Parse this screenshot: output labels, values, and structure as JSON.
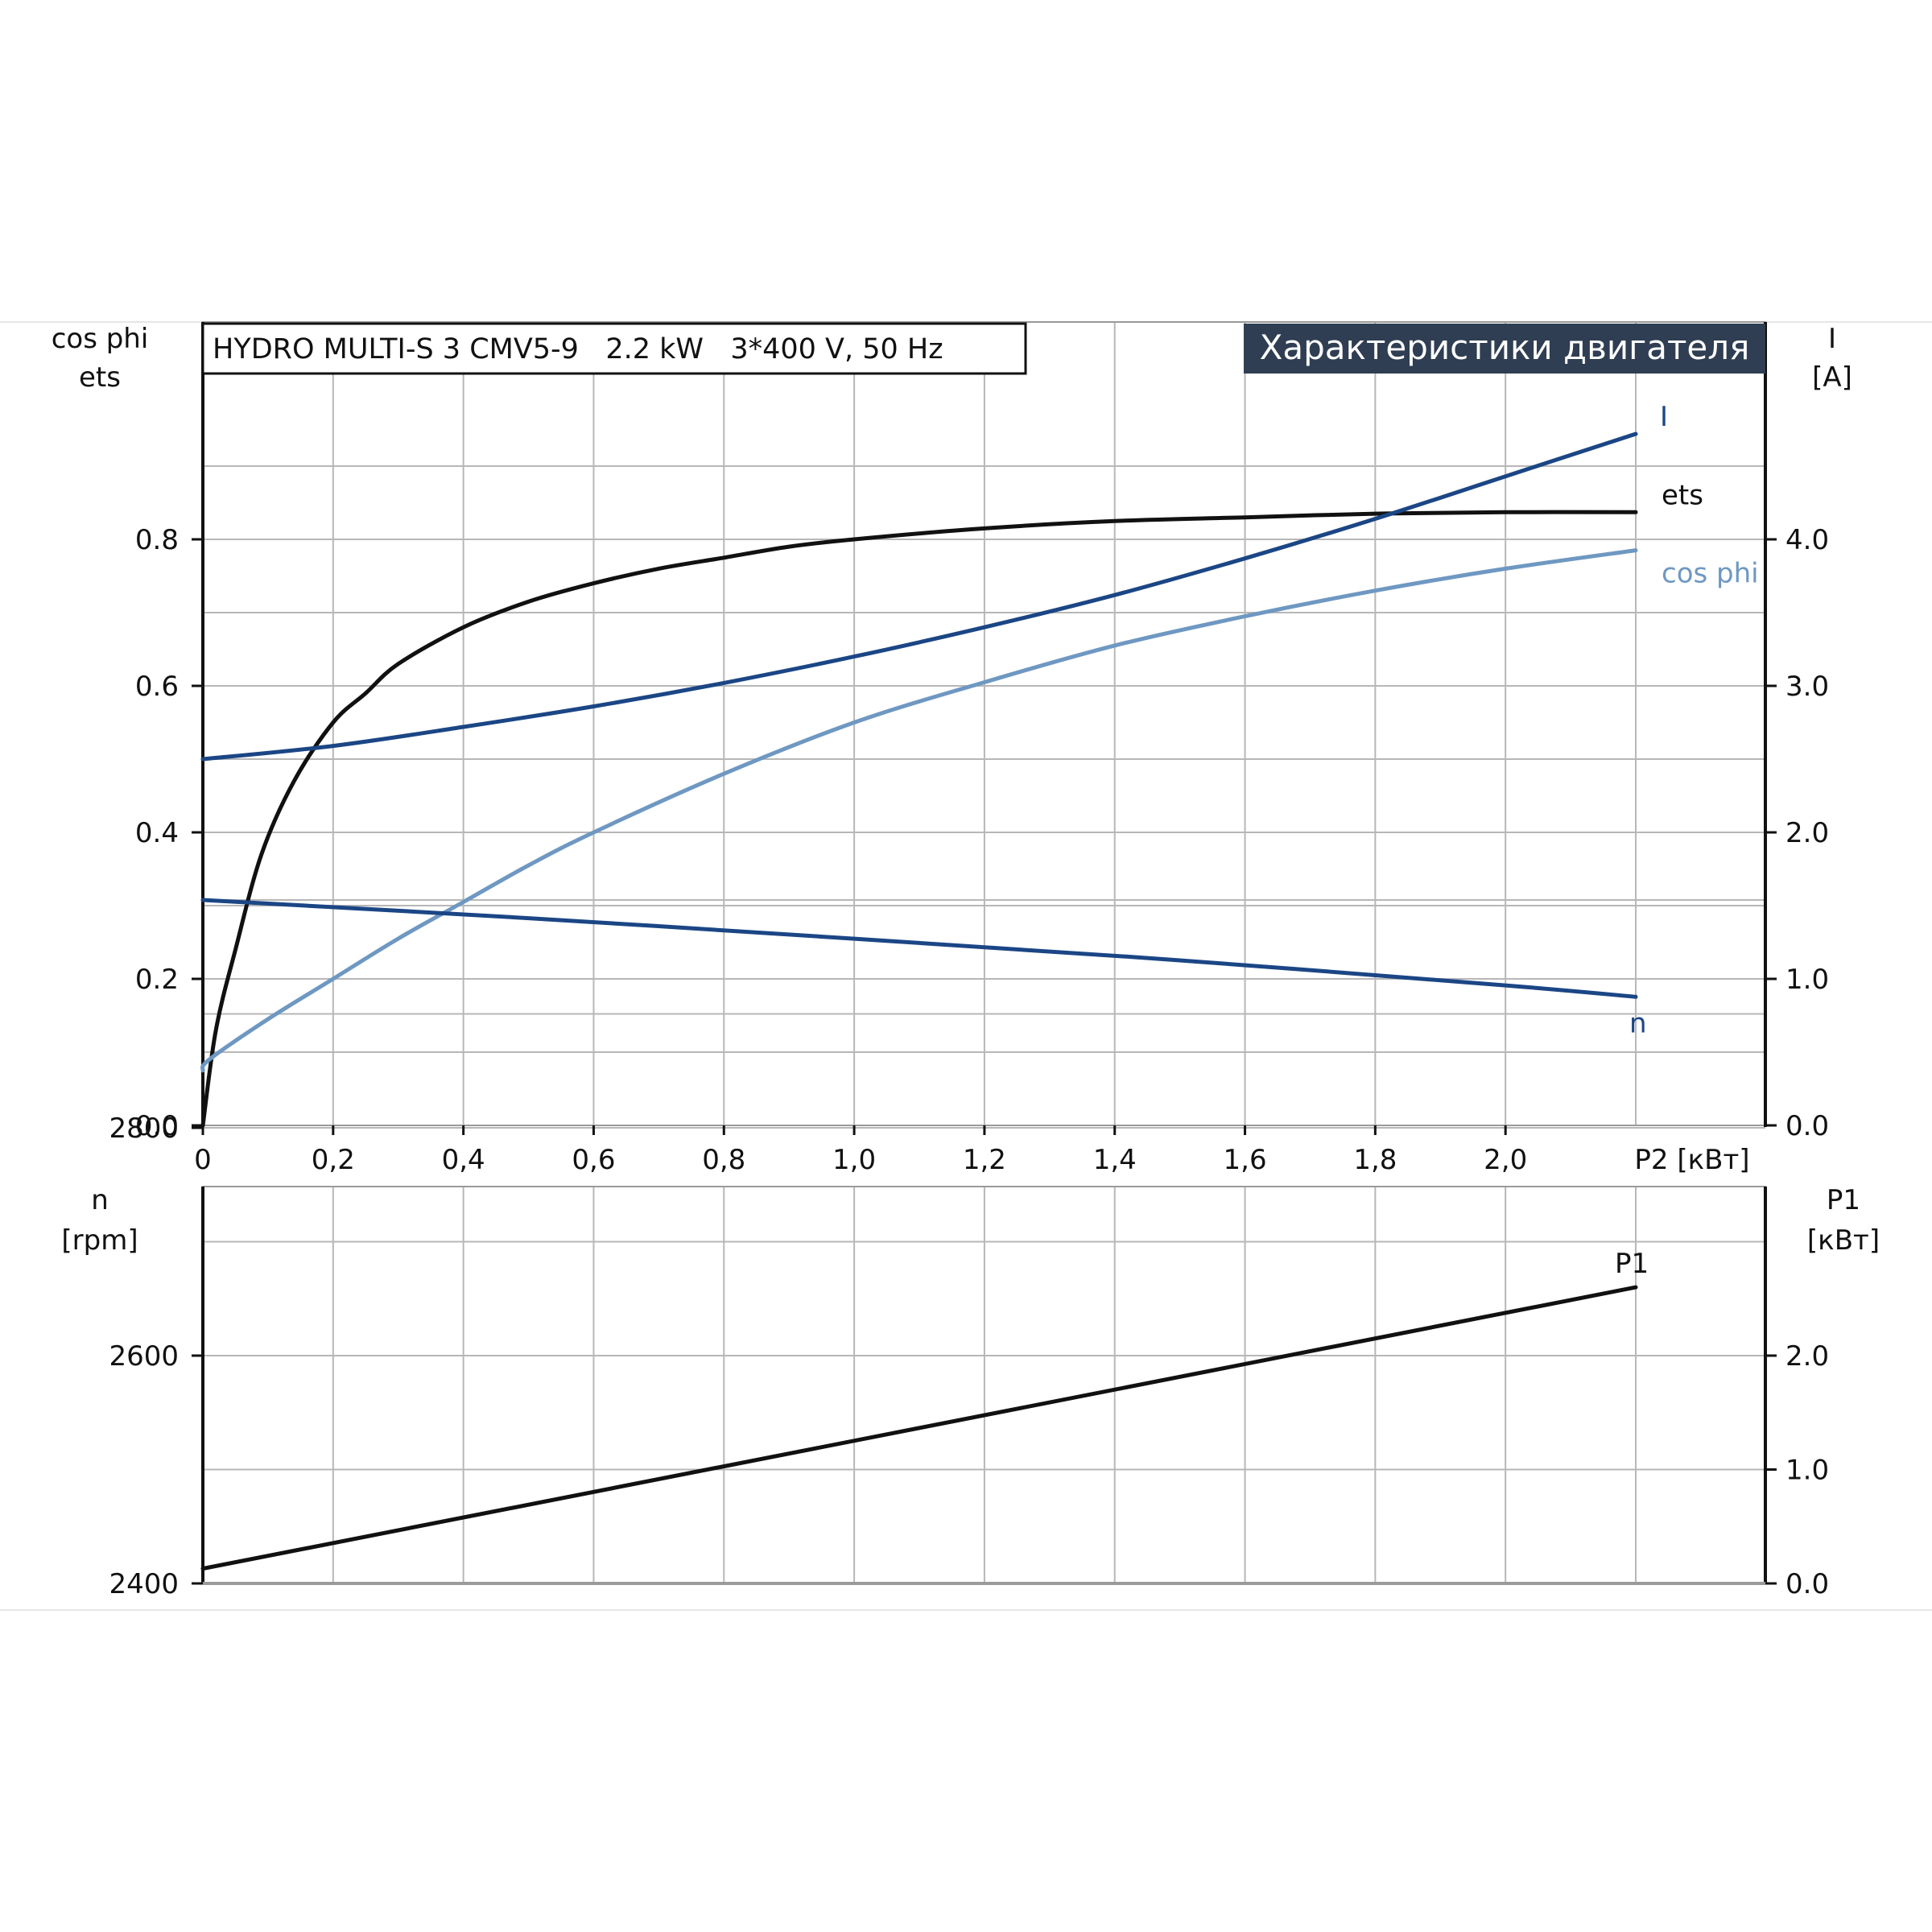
{
  "colors": {
    "dark": "#111111",
    "navy": "#1b4685",
    "light_blue": "#6e98c2",
    "grid": "#b7b7b7",
    "banner_bg": "#2f3e52",
    "banner_fg": "#ffffff"
  },
  "header": {
    "product_label": "HYDRO MULTI-S 3 CMV5-9   2.2 kW   3*400 V, 50 Hz",
    "banner": "Характеристики двигателя"
  },
  "top_axes": {
    "left_label_1": "cos phi",
    "left_label_2": "ets",
    "right_label_1": "I",
    "right_label_2": "[A]"
  },
  "bottom_axes": {
    "left_label_1": "n",
    "left_label_2": "[rpm]",
    "right_label_1": "P1",
    "right_label_2": "[кВт]"
  },
  "x_axis": {
    "label": "P2 [кВт]",
    "ticks": [
      "0",
      "0,2",
      "0,4",
      "0,6",
      "0,8",
      "1,0",
      "1,2",
      "1,4",
      "1,6",
      "1,8",
      "2,0"
    ]
  },
  "chart_data": [
    {
      "type": "line",
      "panel": "top",
      "xlabel": "P2 [кВт]",
      "ylabel_left": "cos phi / ets",
      "ylabel_right": "I [A]",
      "xlim": [
        0,
        2.4
      ],
      "ylim_left": [
        0,
        1.0
      ],
      "ylim_right": [
        0,
        5.0
      ],
      "left_ticks": [
        "0.0",
        "0.2",
        "0.4",
        "0.6",
        "0.8"
      ],
      "right_ticks": [
        "0.0",
        "1.0",
        "2.0",
        "3.0",
        "4.0"
      ],
      "grid": true,
      "series": [
        {
          "name": "ets",
          "axis": "left",
          "color": "#111111",
          "x": [
            0,
            0.02,
            0.05,
            0.09,
            0.14,
            0.2,
            0.25,
            0.3,
            0.4,
            0.5,
            0.6,
            0.7,
            0.8,
            0.9,
            1.0,
            1.2,
            1.4,
            1.6,
            1.8,
            2.0,
            2.2
          ],
          "y": [
            0,
            0.13,
            0.24,
            0.37,
            0.47,
            0.55,
            0.59,
            0.63,
            0.68,
            0.715,
            0.74,
            0.76,
            0.775,
            0.79,
            0.8,
            0.815,
            0.825,
            0.83,
            0.835,
            0.837,
            0.837
          ]
        },
        {
          "name": "I",
          "axis": "right",
          "color": "#1b4685",
          "x": [
            0,
            0.2,
            0.4,
            0.6,
            0.8,
            1.0,
            1.2,
            1.4,
            1.6,
            1.8,
            2.0,
            2.2
          ],
          "y": [
            2.5,
            2.59,
            2.72,
            2.86,
            3.02,
            3.2,
            3.4,
            3.62,
            3.87,
            4.14,
            4.43,
            4.72
          ]
        },
        {
          "name": "cos phi",
          "axis": "left",
          "color": "#6e98c2",
          "x": [
            0,
            0.01,
            0.1,
            0.2,
            0.3,
            0.4,
            0.5,
            0.6,
            0.8,
            1.0,
            1.2,
            1.4,
            1.6,
            1.8,
            2.0,
            2.2
          ],
          "y": [
            0.075,
            0.09,
            0.145,
            0.2,
            0.255,
            0.305,
            0.355,
            0.4,
            0.48,
            0.55,
            0.605,
            0.655,
            0.695,
            0.73,
            0.76,
            0.785
          ]
        }
      ]
    },
    {
      "type": "line",
      "panel": "bottom",
      "xlabel": "P2 [кВт]",
      "ylabel_left": "n [rpm]",
      "ylabel_right": "P1 [кВт]",
      "xlim": [
        0,
        2.4
      ],
      "ylim_left": [
        2400,
        3100
      ],
      "ylim_right": [
        0,
        3.5
      ],
      "left_ticks": [
        "2400",
        "2600",
        "2800"
      ],
      "right_ticks": [
        "0.0",
        "1.0",
        "2.0"
      ],
      "grid": true,
      "series": [
        {
          "name": "n",
          "axis": "left",
          "color": "#1b4685",
          "x": [
            0,
            0.5,
            1.0,
            1.5,
            2.0,
            2.2
          ],
          "y": [
            3000,
            2984,
            2966,
            2947,
            2925,
            2915
          ]
        },
        {
          "name": "P1",
          "axis": "right",
          "color": "#111111",
          "x": [
            0,
            2.2
          ],
          "y": [
            0.13,
            2.6
          ]
        }
      ]
    }
  ]
}
